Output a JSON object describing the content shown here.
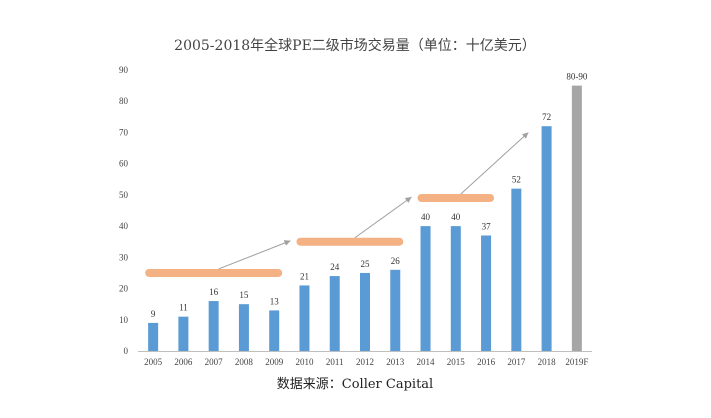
{
  "chart_data": {
    "type": "bar",
    "title": "2005-2018年全球PE二级市场交易量（单位：十亿美元）",
    "source": "数据来源：Coller Capital",
    "categories": [
      "2005",
      "2006",
      "2007",
      "2008",
      "2009",
      "2010",
      "2011",
      "2012",
      "2013",
      "2014",
      "2015",
      "2016",
      "2017",
      "2018",
      "2019F"
    ],
    "values": [
      9,
      11,
      16,
      15,
      13,
      21,
      24,
      25,
      26,
      40,
      40,
      37,
      52,
      72,
      85
    ],
    "value_labels": [
      "9",
      "11",
      "16",
      "15",
      "13",
      "21",
      "24",
      "25",
      "26",
      "40",
      "40",
      "37",
      "52",
      "72",
      "80-90"
    ],
    "forecast_range": [
      80,
      90
    ],
    "ylim": [
      0,
      90
    ],
    "y_ticks": [
      "0",
      "10",
      "20",
      "30",
      "40",
      "50",
      "60",
      "70",
      "80",
      "90"
    ],
    "grid": false,
    "bar_color": "#5b9bd5",
    "forecast_bar_color": "#a6a6a6",
    "trend_band_color": "#f4b183",
    "trend_arrow_color": "#a0a0a0",
    "trend_bands": [
      {
        "from": "2005",
        "to": "2009",
        "level": 25
      },
      {
        "from": "2010",
        "to": "2013",
        "level": 35
      },
      {
        "from": "2014",
        "to": "2016",
        "level": 49
      }
    ]
  }
}
